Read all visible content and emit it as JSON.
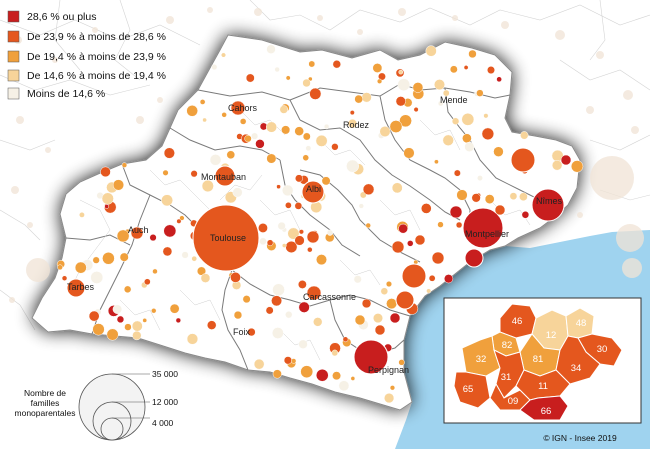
{
  "legend": {
    "items": [
      {
        "label": "28,6 % ou plus",
        "color": "#c81e1e"
      },
      {
        "label": "De 23,9 % à moins de 28,6 %",
        "color": "#e4571e"
      },
      {
        "label": "De 19,4 % à moins de 23,9 %",
        "color": "#f0a03c"
      },
      {
        "label": "De 14,6 % à moins de 19,4 %",
        "color": "#f7d49a"
      },
      {
        "label": "Moins de 14,6 %",
        "color": "#f6f1e6"
      }
    ]
  },
  "size_legend": {
    "title_lines": [
      "Nombre de",
      "familles",
      "monoparentales"
    ],
    "values": [
      "35 000",
      "12 000",
      "4 000"
    ]
  },
  "cities": [
    {
      "name": "Cahors"
    },
    {
      "name": "Rodez"
    },
    {
      "name": "Mende"
    },
    {
      "name": "Montauban"
    },
    {
      "name": "Albi"
    },
    {
      "name": "Nîmes"
    },
    {
      "name": "Auch"
    },
    {
      "name": "Toulouse"
    },
    {
      "name": "Montpellier"
    },
    {
      "name": "Tarbes"
    },
    {
      "name": "Carcassonne"
    },
    {
      "name": "Foix"
    },
    {
      "name": "Perpignan"
    }
  ],
  "inset": {
    "departments": [
      {
        "code": "46",
        "color": "#e4571e"
      },
      {
        "code": "12",
        "color": "#f7d49a"
      },
      {
        "code": "48",
        "color": "#f7d49a"
      },
      {
        "code": "82",
        "color": "#f0a03c"
      },
      {
        "code": "81",
        "color": "#f0a03c"
      },
      {
        "code": "32",
        "color": "#f0a03c"
      },
      {
        "code": "31",
        "color": "#e4571e"
      },
      {
        "code": "30",
        "color": "#e4571e"
      },
      {
        "code": "34",
        "color": "#e4571e"
      },
      {
        "code": "65",
        "color": "#e4571e"
      },
      {
        "code": "09",
        "color": "#e4571e"
      },
      {
        "code": "11",
        "color": "#e4571e"
      },
      {
        "code": "66",
        "color": "#c81e1e"
      }
    ]
  },
  "credit": "© IGN - Insee 2019",
  "colors": {
    "sea": "#9fd3ef",
    "outside": "#ffffff",
    "region": "#ffffff",
    "border": "#9a9a9a"
  }
}
